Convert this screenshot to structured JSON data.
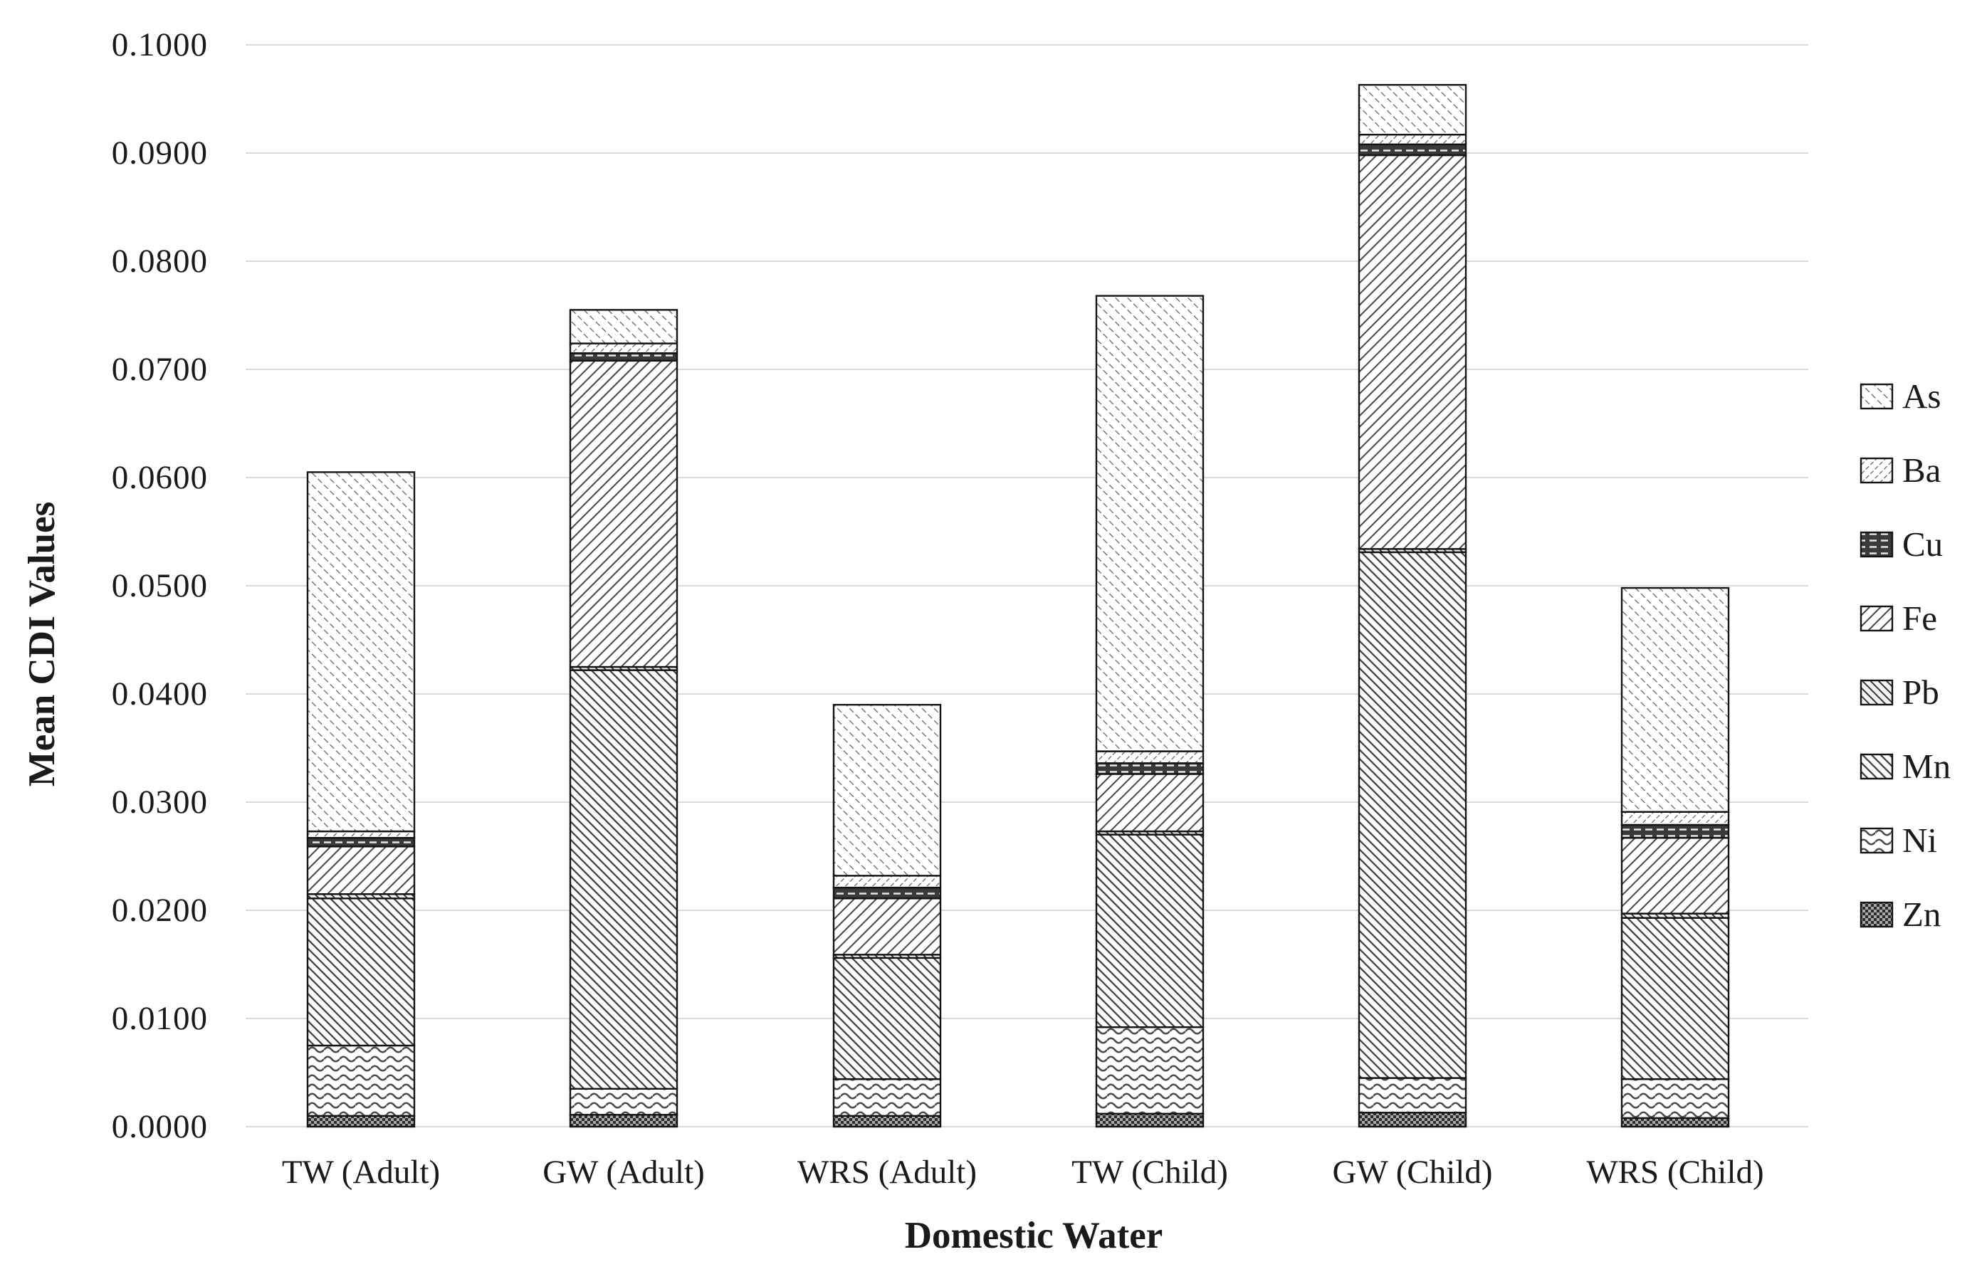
{
  "figure": {
    "kind": "grayscale stacked column chart (journal figure)",
    "background": "#ffffff",
    "ink_color": "#1a1a1a",
    "gridline_color": "#d9d9d9"
  },
  "chart_data": {
    "type": "bar",
    "stacked": true,
    "title": "",
    "xlabel": "Domestic Water",
    "ylabel": "Mean CDI Values",
    "categories": [
      "TW (Adult)",
      "GW (Adult)",
      "WRS (Adult)",
      "TW (Child)",
      "GW (Child)",
      "WRS (Child)"
    ],
    "stack_order": "bottom-to-top",
    "series": [
      {
        "name": "Zn",
        "pattern": "checker-dark",
        "values": [
          0.001,
          0.0011,
          0.001,
          0.0012,
          0.0013,
          0.0008
        ]
      },
      {
        "name": "Ni",
        "pattern": "wavy",
        "values": [
          0.0065,
          0.0024,
          0.0034,
          0.008,
          0.0032,
          0.0036
        ]
      },
      {
        "name": "Mn",
        "pattern": "diagonal-down-dense",
        "values": [
          0.0136,
          0.0387,
          0.0112,
          0.0178,
          0.0486,
          0.0149
        ]
      },
      {
        "name": "Pb",
        "pattern": "diagonal-down-dark",
        "values": [
          0.0004,
          0.0003,
          0.0003,
          0.0003,
          0.0003,
          0.0004
        ]
      },
      {
        "name": "Fe",
        "pattern": "diagonal-up-bold",
        "values": [
          0.0044,
          0.0283,
          0.0052,
          0.0053,
          0.0364,
          0.007
        ]
      },
      {
        "name": "Cu",
        "pattern": "dark-dashed",
        "values": [
          0.0008,
          0.0007,
          0.001,
          0.001,
          0.001,
          0.0012
        ]
      },
      {
        "name": "Ba",
        "pattern": "diagonal-up-light",
        "values": [
          0.0006,
          0.0009,
          0.0011,
          0.0011,
          0.0009,
          0.0012
        ]
      },
      {
        "name": "As",
        "pattern": "diagonal-down-light",
        "values": [
          0.0332,
          0.0031,
          0.0158,
          0.0421,
          0.0046,
          0.0207
        ]
      }
    ],
    "totals": [
      0.0605,
      0.0755,
      0.039,
      0.0768,
      0.0963,
      0.0498
    ],
    "legend": [
      "As",
      "Ba",
      "Cu",
      "Fe",
      "Pb",
      "Mn",
      "Ni",
      "Zn"
    ],
    "legend_position": "right",
    "ylim": [
      0.0,
      0.1
    ],
    "y_ticks": [
      0.0,
      0.01,
      0.02,
      0.03,
      0.04,
      0.05,
      0.06,
      0.07,
      0.08,
      0.09,
      0.1
    ],
    "y_tick_labels": [
      "0.0000",
      "0.0100",
      "0.0200",
      "0.0300",
      "0.0400",
      "0.0500",
      "0.0600",
      "0.0700",
      "0.0800",
      "0.0900",
      "0.1000"
    ],
    "grid": "horizontal"
  }
}
